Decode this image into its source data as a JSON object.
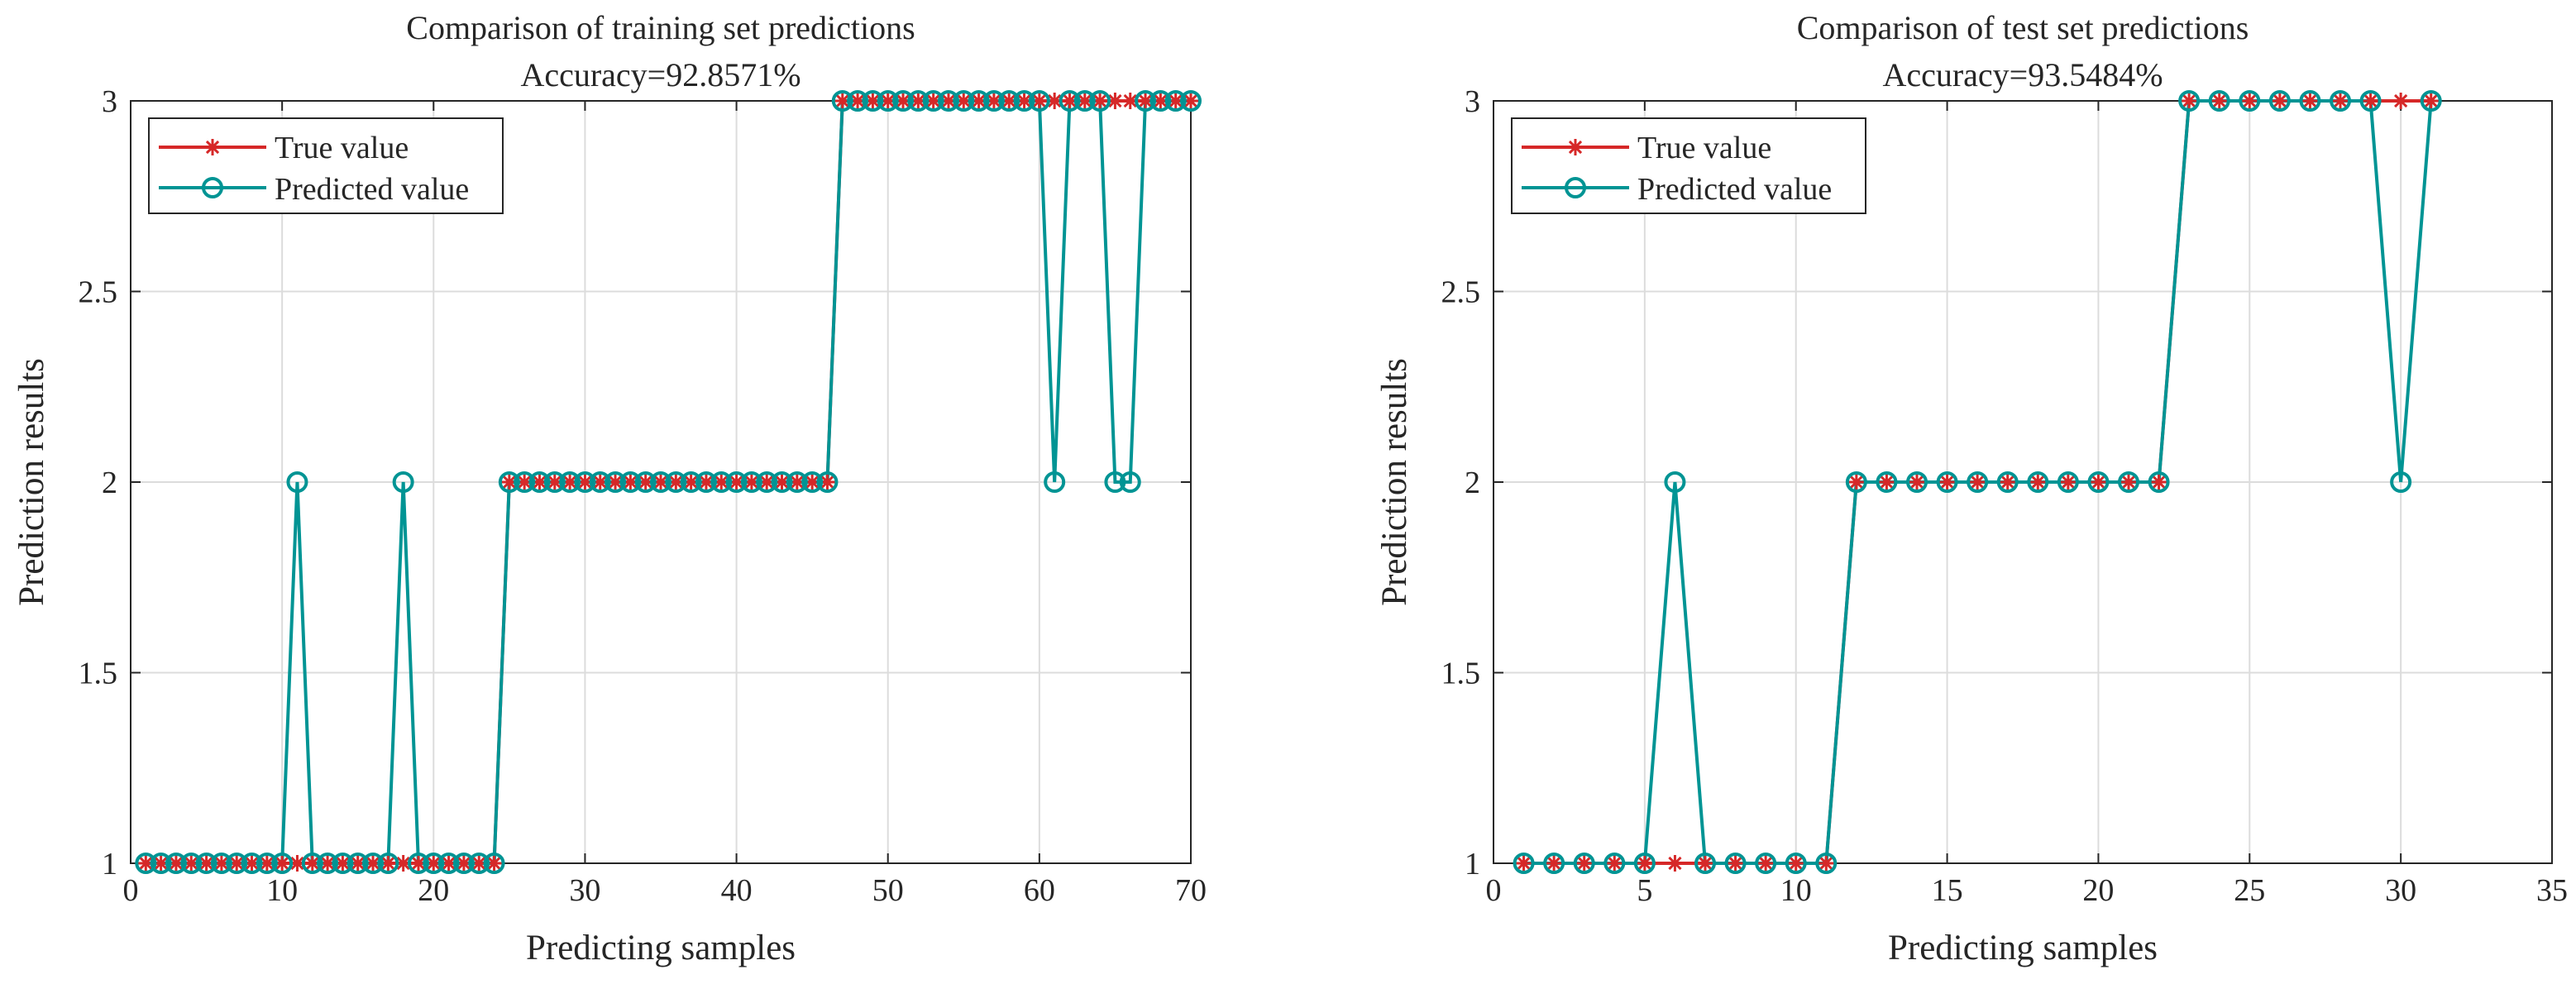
{
  "figure": {
    "background": "#ffffff",
    "true_color": "#d62828",
    "pred_color": "#009494",
    "grid_color": "#dcdcdc",
    "axis_color": "#262626"
  },
  "chart_data": [
    {
      "type": "line",
      "title": "Comparison of training set predictions",
      "subtitle": "Accuracy=92.8571%",
      "xlabel": "Predicting samples",
      "ylabel": "Prediction results",
      "xlim": [
        0,
        70
      ],
      "ylim": [
        1,
        3
      ],
      "xticks": [
        0,
        10,
        20,
        30,
        40,
        50,
        60,
        70
      ],
      "yticks": [
        1,
        1.5,
        2,
        2.5,
        3
      ],
      "xtick_labels": [
        "0",
        "10",
        "20",
        "30",
        "40",
        "50",
        "60",
        "70"
      ],
      "ytick_labels": [
        "1",
        "1.5",
        "2",
        "2.5",
        "3"
      ],
      "grid": true,
      "legend_position": "top-left",
      "series": [
        {
          "name": "True value",
          "marker": "asterisk",
          "x": [
            1,
            2,
            3,
            4,
            5,
            6,
            7,
            8,
            9,
            10,
            11,
            12,
            13,
            14,
            15,
            16,
            17,
            18,
            19,
            20,
            21,
            22,
            23,
            24,
            25,
            26,
            27,
            28,
            29,
            30,
            31,
            32,
            33,
            34,
            35,
            36,
            37,
            38,
            39,
            40,
            41,
            42,
            43,
            44,
            45,
            46,
            47,
            48,
            49,
            50,
            51,
            52,
            53,
            54,
            55,
            56,
            57,
            58,
            59,
            60,
            61,
            62,
            63,
            64,
            65,
            66,
            67,
            68,
            69,
            70
          ],
          "values": [
            1,
            1,
            1,
            1,
            1,
            1,
            1,
            1,
            1,
            1,
            1,
            1,
            1,
            1,
            1,
            1,
            1,
            1,
            1,
            1,
            1,
            1,
            1,
            1,
            2,
            2,
            2,
            2,
            2,
            2,
            2,
            2,
            2,
            2,
            2,
            2,
            2,
            2,
            2,
            2,
            2,
            2,
            2,
            2,
            2,
            2,
            3,
            3,
            3,
            3,
            3,
            3,
            3,
            3,
            3,
            3,
            3,
            3,
            3,
            3,
            3,
            3,
            3,
            3,
            3,
            3,
            3,
            3,
            3,
            3
          ]
        },
        {
          "name": "Predicted value",
          "marker": "circle",
          "x": [
            1,
            2,
            3,
            4,
            5,
            6,
            7,
            8,
            9,
            10,
            11,
            12,
            13,
            14,
            15,
            16,
            17,
            18,
            19,
            20,
            21,
            22,
            23,
            24,
            25,
            26,
            27,
            28,
            29,
            30,
            31,
            32,
            33,
            34,
            35,
            36,
            37,
            38,
            39,
            40,
            41,
            42,
            43,
            44,
            45,
            46,
            47,
            48,
            49,
            50,
            51,
            52,
            53,
            54,
            55,
            56,
            57,
            58,
            59,
            60,
            61,
            62,
            63,
            64,
            65,
            66,
            67,
            68,
            69,
            70
          ],
          "values": [
            1,
            1,
            1,
            1,
            1,
            1,
            1,
            1,
            1,
            1,
            2,
            1,
            1,
            1,
            1,
            1,
            1,
            2,
            1,
            1,
            1,
            1,
            1,
            1,
            2,
            2,
            2,
            2,
            2,
            2,
            2,
            2,
            2,
            2,
            2,
            2,
            2,
            2,
            2,
            2,
            2,
            2,
            2,
            2,
            2,
            2,
            3,
            3,
            3,
            3,
            3,
            3,
            3,
            3,
            3,
            3,
            3,
            3,
            3,
            3,
            2,
            3,
            3,
            3,
            2,
            2,
            3,
            3,
            3,
            3
          ]
        }
      ]
    },
    {
      "type": "line",
      "title": "Comparison of test set predictions",
      "subtitle": "Accuracy=93.5484%",
      "xlabel": "Predicting samples",
      "ylabel": "Prediction results",
      "xlim": [
        0,
        35
      ],
      "ylim": [
        1,
        3
      ],
      "xticks": [
        0,
        5,
        10,
        15,
        20,
        25,
        30,
        35
      ],
      "yticks": [
        1,
        1.5,
        2,
        2.5,
        3
      ],
      "xtick_labels": [
        "0",
        "5",
        "10",
        "15",
        "20",
        "25",
        "30",
        "35"
      ],
      "ytick_labels": [
        "1",
        "1.5",
        "2",
        "2.5",
        "3"
      ],
      "grid": true,
      "legend_position": "top-left",
      "series": [
        {
          "name": "True value",
          "marker": "asterisk",
          "x": [
            1,
            2,
            3,
            4,
            5,
            6,
            7,
            8,
            9,
            10,
            11,
            12,
            13,
            14,
            15,
            16,
            17,
            18,
            19,
            20,
            21,
            22,
            23,
            24,
            25,
            26,
            27,
            28,
            29,
            30,
            31
          ],
          "values": [
            1,
            1,
            1,
            1,
            1,
            1,
            1,
            1,
            1,
            1,
            1,
            2,
            2,
            2,
            2,
            2,
            2,
            2,
            2,
            2,
            2,
            2,
            3,
            3,
            3,
            3,
            3,
            3,
            3,
            3,
            3
          ]
        },
        {
          "name": "Predicted value",
          "marker": "circle",
          "x": [
            1,
            2,
            3,
            4,
            5,
            6,
            7,
            8,
            9,
            10,
            11,
            12,
            13,
            14,
            15,
            16,
            17,
            18,
            19,
            20,
            21,
            22,
            23,
            24,
            25,
            26,
            27,
            28,
            29,
            30,
            31
          ],
          "values": [
            1,
            1,
            1,
            1,
            1,
            2,
            1,
            1,
            1,
            1,
            1,
            2,
            2,
            2,
            2,
            2,
            2,
            2,
            2,
            2,
            2,
            2,
            3,
            3,
            3,
            3,
            3,
            3,
            3,
            2,
            3
          ]
        }
      ]
    }
  ]
}
